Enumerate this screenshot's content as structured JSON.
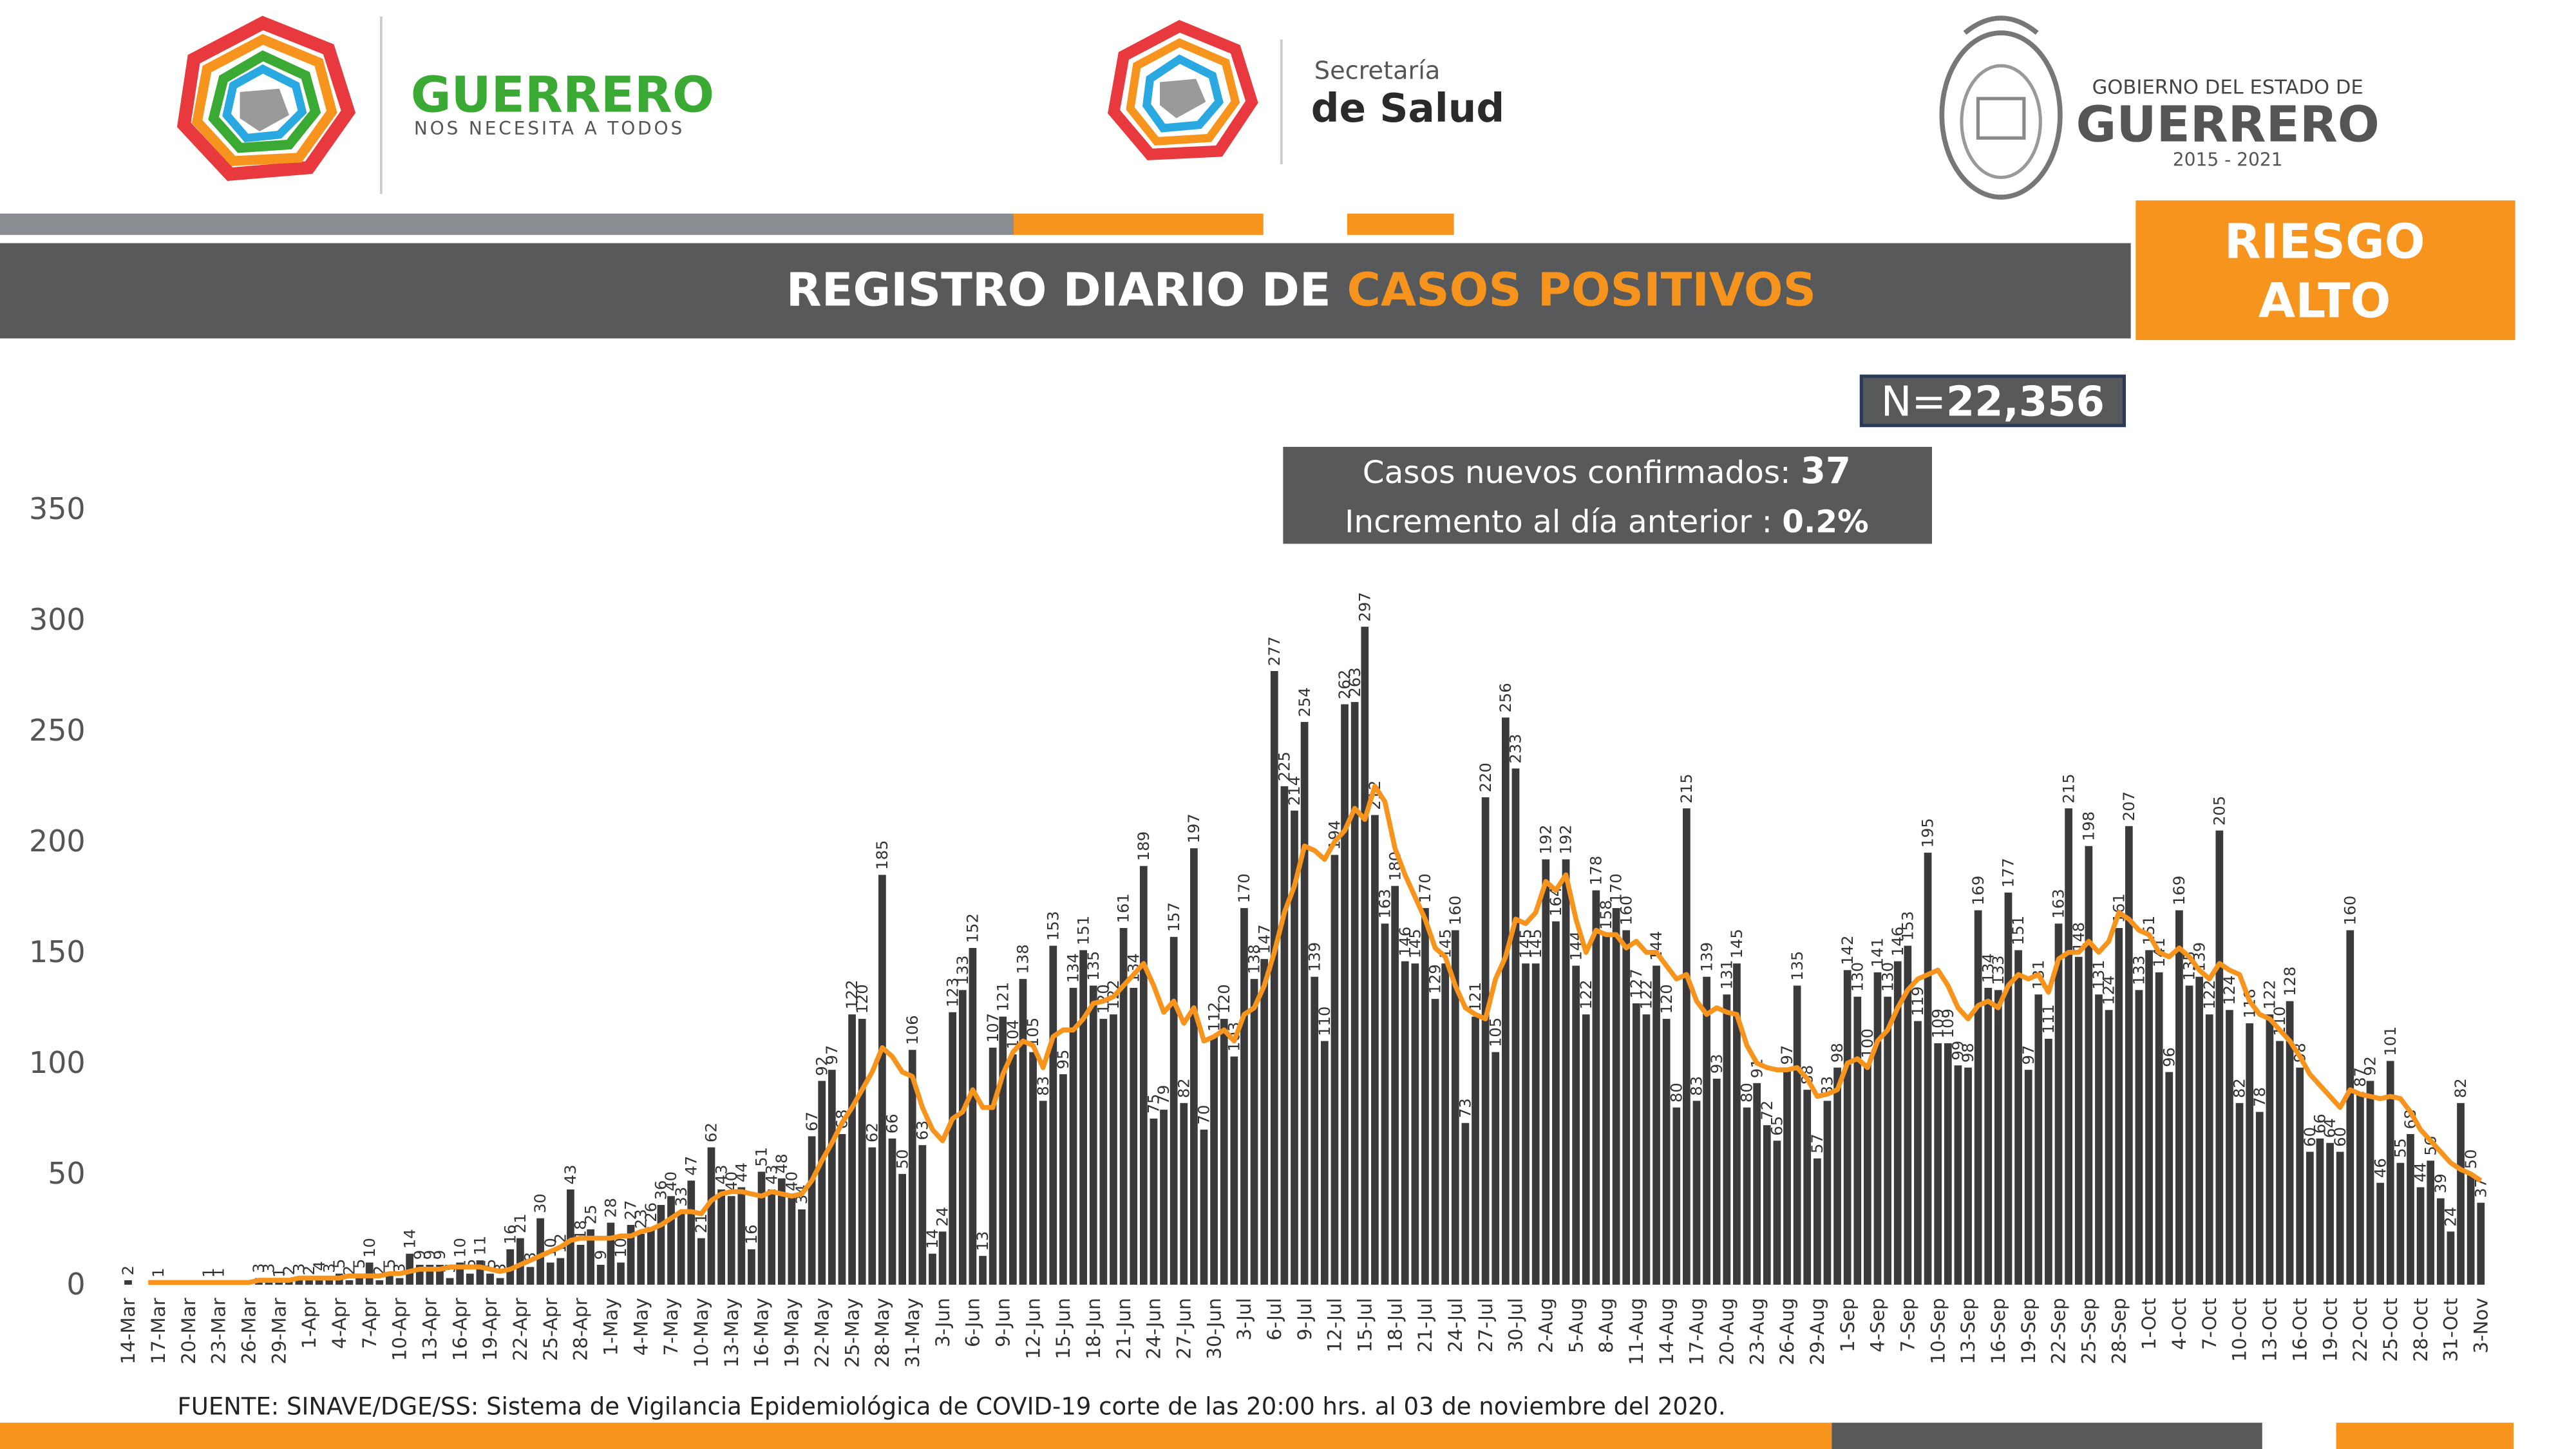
{
  "header": {
    "logo1_title": "GUERRERO",
    "logo1_subtitle": "NOS NECESITA A TODOS",
    "logo2_line1": "Secretaría",
    "logo2_line2": "de Salud",
    "logo3_line1": "GOBIERNO DEL ESTADO DE",
    "logo3_line2": "GUERRERO",
    "logo3_years": "2015 - 2021",
    "risk_line1": "RIESGO",
    "risk_line2": "ALTO"
  },
  "chart_data": {
    "type": "bar",
    "title_part1": "REGISTRO DIARIO DE ",
    "title_part2": "CASOS POSITIVOS",
    "total_label": "N=",
    "total_value": "22,356",
    "info_label1": "Casos nuevos confirmados: ",
    "info_value1": "37",
    "info_label2": "Incremento al día anterior : ",
    "info_value2": "0.2%",
    "source": "FUENTE: SINAVE/DGE/SS: Sistema de Vigilancia Epidemiológica de COVID-19 corte de las 20:00 hrs. al 03 de noviembre del 2020.",
    "categories": [
      "14-Mar",
      null,
      null,
      "17-Mar",
      null,
      null,
      "20-Mar",
      null,
      null,
      "23-Mar",
      null,
      null,
      "26-Mar",
      null,
      null,
      "29-Mar",
      null,
      null,
      "1-Apr",
      null,
      null,
      "4-Apr",
      null,
      null,
      "7-Apr",
      null,
      null,
      "10-Apr",
      null,
      null,
      "13-Apr",
      null,
      null,
      "16-Apr",
      null,
      null,
      "19-Apr",
      null,
      null,
      "22-Apr",
      null,
      null,
      "25-Apr",
      null,
      null,
      "28-Apr",
      null,
      null,
      "1-May",
      null,
      null,
      "4-May",
      null,
      null,
      "7-May",
      null,
      null,
      "10-May",
      null,
      null,
      "13-May",
      null,
      null,
      "16-May",
      null,
      null,
      "19-May",
      null,
      null,
      "22-May",
      null,
      null,
      "25-May",
      null,
      null,
      "28-May",
      null,
      null,
      "31-May",
      null,
      null,
      "3-Jun",
      null,
      null,
      "6-Jun",
      null,
      null,
      "9-Jun",
      null,
      null,
      "12-Jun",
      null,
      null,
      "15-Jun",
      null,
      null,
      "18-Jun",
      null,
      null,
      "21-Jun",
      null,
      null,
      "24-Jun",
      null,
      null,
      "27-Jun",
      null,
      null,
      "30-Jun",
      null,
      null,
      "3-Jul",
      null,
      null,
      "6-Jul",
      null,
      null,
      "9-Jul",
      null,
      null,
      "12-Jul",
      null,
      null,
      "15-Jul",
      null,
      null,
      "18-Jul",
      null,
      null,
      "21-Jul",
      null,
      null,
      "24-Jul",
      null,
      null,
      "27-Jul",
      null,
      null,
      "30-Jul",
      null,
      null,
      "2-Aug",
      null,
      null,
      "5-Aug",
      null,
      null,
      "8-Aug",
      null,
      null,
      "11-Aug",
      null,
      null,
      "14-Aug",
      null,
      null,
      "17-Aug",
      null,
      null,
      "20-Aug",
      null,
      null,
      "23-Aug",
      null,
      null,
      "26-Aug",
      null,
      null,
      "29-Aug",
      null,
      null,
      "1-Sep",
      null,
      null,
      "4-Sep",
      null,
      null,
      "7-Sep",
      null,
      null,
      "10-Sep",
      null,
      null,
      "13-Sep",
      null,
      null,
      "16-Sep",
      null,
      null,
      "19-Sep",
      null,
      null,
      "22-Sep",
      null,
      null,
      "25-Sep",
      null,
      null,
      "28-Sep",
      null,
      null,
      "1-Oct",
      null,
      null,
      "4-Oct",
      null,
      null,
      "7-Oct",
      null,
      null,
      "10-Oct",
      null,
      null,
      "13-Oct",
      null,
      null,
      "16-Oct",
      null,
      null,
      "19-Oct",
      null,
      null,
      "22-Oct",
      null,
      null,
      "25-Oct",
      null,
      null,
      "28-Oct",
      null,
      null,
      "31-Oct",
      null,
      null,
      "3-Nov"
    ],
    "series": [
      {
        "type": "bar",
        "color": "#3a3a3c",
        "values": [
          2,
          0,
          0,
          1,
          0,
          0,
          0,
          0,
          1,
          1,
          0,
          0,
          0,
          3,
          3,
          1,
          2,
          3,
          2,
          4,
          3,
          5,
          2,
          5,
          10,
          2,
          5,
          3,
          14,
          9,
          9,
          9,
          3,
          10,
          5,
          11,
          5,
          3,
          16,
          21,
          8,
          30,
          10,
          12,
          43,
          18,
          25,
          9,
          28,
          10,
          27,
          23,
          26,
          36,
          40,
          33,
          47,
          21,
          62,
          43,
          40,
          44,
          16,
          51,
          43,
          48,
          40,
          34,
          67,
          92,
          97,
          68,
          122,
          120,
          62,
          185,
          66,
          50,
          106,
          63,
          14,
          24,
          123,
          133,
          152,
          13,
          107,
          121,
          104,
          138,
          105,
          83,
          153,
          95,
          134,
          151,
          135,
          120,
          122,
          161,
          134,
          189,
          75,
          79,
          157,
          82,
          197,
          70,
          112,
          120,
          103,
          170,
          138,
          147,
          277,
          225,
          214,
          254,
          139,
          110,
          194,
          262,
          263,
          297,
          212,
          163,
          180,
          146,
          145,
          170,
          129,
          145,
          160,
          73,
          121,
          220,
          105,
          256,
          233,
          145,
          145,
          192,
          164,
          192,
          144,
          122,
          178,
          158,
          170,
          160,
          127,
          122,
          144,
          120,
          80,
          215,
          83,
          139,
          93,
          131,
          145,
          80,
          91,
          72,
          65,
          97,
          135,
          88,
          57,
          83,
          98,
          142,
          130,
          100,
          141,
          130,
          146,
          153,
          119,
          195,
          109,
          109,
          99,
          98,
          169,
          134,
          133,
          177,
          151,
          97,
          131,
          111,
          163,
          215,
          148,
          198,
          131,
          124,
          161,
          207,
          133,
          151,
          141,
          96,
          169,
          135,
          139,
          122,
          205,
          124,
          82,
          118,
          78,
          122,
          110,
          128,
          98,
          60,
          66,
          64,
          60,
          160,
          87,
          92,
          46,
          101,
          55,
          68,
          44,
          56,
          39,
          24,
          82,
          50,
          37
        ]
      },
      {
        "type": "line",
        "color": "#f7941d",
        "values": [
          null,
          null,
          1,
          1,
          1,
          1,
          1,
          1,
          1,
          1,
          1,
          1,
          1,
          2,
          2,
          2,
          2,
          3,
          3,
          3,
          3,
          3,
          4,
          4,
          4,
          4,
          5,
          5,
          6,
          7,
          7,
          7,
          8,
          8,
          8,
          8,
          7,
          6,
          7,
          9,
          11,
          13,
          15,
          17,
          20,
          21,
          21,
          21,
          21,
          22,
          22,
          24,
          25,
          27,
          30,
          33,
          33,
          32,
          38,
          41,
          42,
          42,
          41,
          40,
          42,
          41,
          40,
          41,
          47,
          56,
          64,
          73,
          80,
          88,
          96,
          107,
          103,
          96,
          94,
          80,
          70,
          65,
          75,
          78,
          88,
          80,
          80,
          95,
          105,
          110,
          108,
          98,
          112,
          115,
          115,
          120,
          127,
          128,
          130,
          135,
          140,
          145,
          135,
          123,
          128,
          118,
          125,
          110,
          112,
          115,
          110,
          122,
          125,
          135,
          150,
          168,
          180,
          198,
          196,
          192,
          200,
          205,
          215,
          210,
          225,
          218,
          197,
          185,
          175,
          165,
          152,
          148,
          135,
          125,
          122,
          120,
          138,
          148,
          165,
          163,
          168,
          182,
          178,
          185,
          165,
          150,
          160,
          158,
          158,
          152,
          155,
          150,
          150,
          144,
          138,
          140,
          128,
          122,
          125,
          123,
          122,
          108,
          100,
          98,
          97,
          97,
          98,
          93,
          85,
          86,
          88,
          100,
          102,
          98,
          110,
          115,
          125,
          133,
          138,
          140,
          142,
          135,
          125,
          120,
          126,
          128,
          125,
          135,
          140,
          138,
          140,
          132,
          147,
          150,
          150,
          155,
          150,
          155,
          168,
          165,
          160,
          158,
          150,
          148,
          152,
          148,
          142,
          138,
          145,
          142,
          140,
          128,
          122,
          120,
          115,
          110,
          103,
          95,
          90,
          85,
          80,
          88,
          86,
          85,
          84,
          85,
          84,
          78,
          70,
          65,
          60,
          55,
          52,
          50,
          47
        ]
      }
    ],
    "ylim": [
      0,
      350
    ],
    "yticks": [
      0,
      50,
      100,
      150,
      200,
      250,
      300,
      350
    ],
    "grid": false,
    "value_labels_shown": true
  }
}
